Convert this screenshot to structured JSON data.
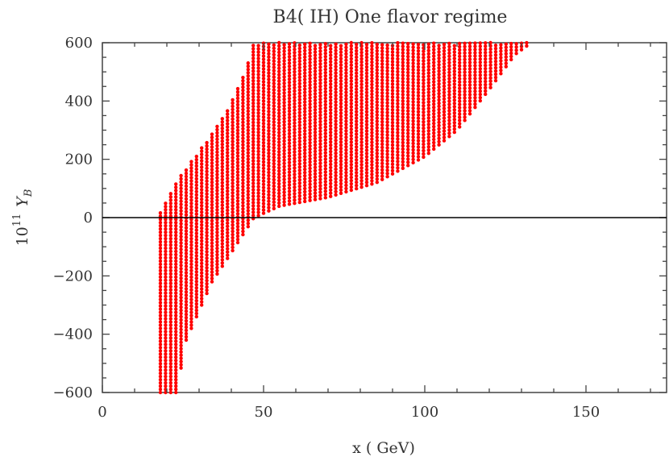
{
  "chart_data": {
    "type": "scatter",
    "title": "B4( IH) One flavor regime",
    "xlabel": "x ( GeV)",
    "ylabel": {
      "prefix": "10",
      "prefix_sup": "11",
      "symbol": "Y",
      "symbol_sub": "B"
    },
    "xlim": [
      0,
      175
    ],
    "ylim": [
      -600,
      600
    ],
    "x_ticks": [
      0,
      50,
      100,
      150
    ],
    "y_ticks": [
      -600,
      -400,
      -200,
      0,
      200,
      400,
      600
    ],
    "x_tick_labels": [
      "0",
      "50",
      "100",
      "150"
    ],
    "y_tick_labels": [
      "−600",
      "−400",
      "−200",
      "0",
      "200",
      "400",
      "600"
    ],
    "reference_line_y": 0,
    "marker_color": "#ff0000",
    "series": [
      {
        "columns": {
          "x_start": 18,
          "x_step": 1.6,
          "x_end": 133,
          "y_step": 11
        },
        "envelope_upper": [
          [
            18,
            20
          ],
          [
            20,
            60
          ],
          [
            22,
            110
          ],
          [
            25,
            160
          ],
          [
            28,
            200
          ],
          [
            32,
            260
          ],
          [
            36,
            320
          ],
          [
            40,
            400
          ],
          [
            44,
            500
          ],
          [
            47,
            600
          ],
          [
            134,
            600
          ]
        ],
        "envelope_lower": [
          [
            18,
            -600
          ],
          [
            23,
            -600
          ],
          [
            26,
            -420
          ],
          [
            30,
            -320
          ],
          [
            34,
            -220
          ],
          [
            40,
            -120
          ],
          [
            47,
            0
          ],
          [
            55,
            40
          ],
          [
            70,
            70
          ],
          [
            85,
            120
          ],
          [
            100,
            210
          ],
          [
            110,
            300
          ],
          [
            120,
            440
          ],
          [
            128,
            560
          ],
          [
            133,
            600
          ]
        ]
      }
    ]
  }
}
